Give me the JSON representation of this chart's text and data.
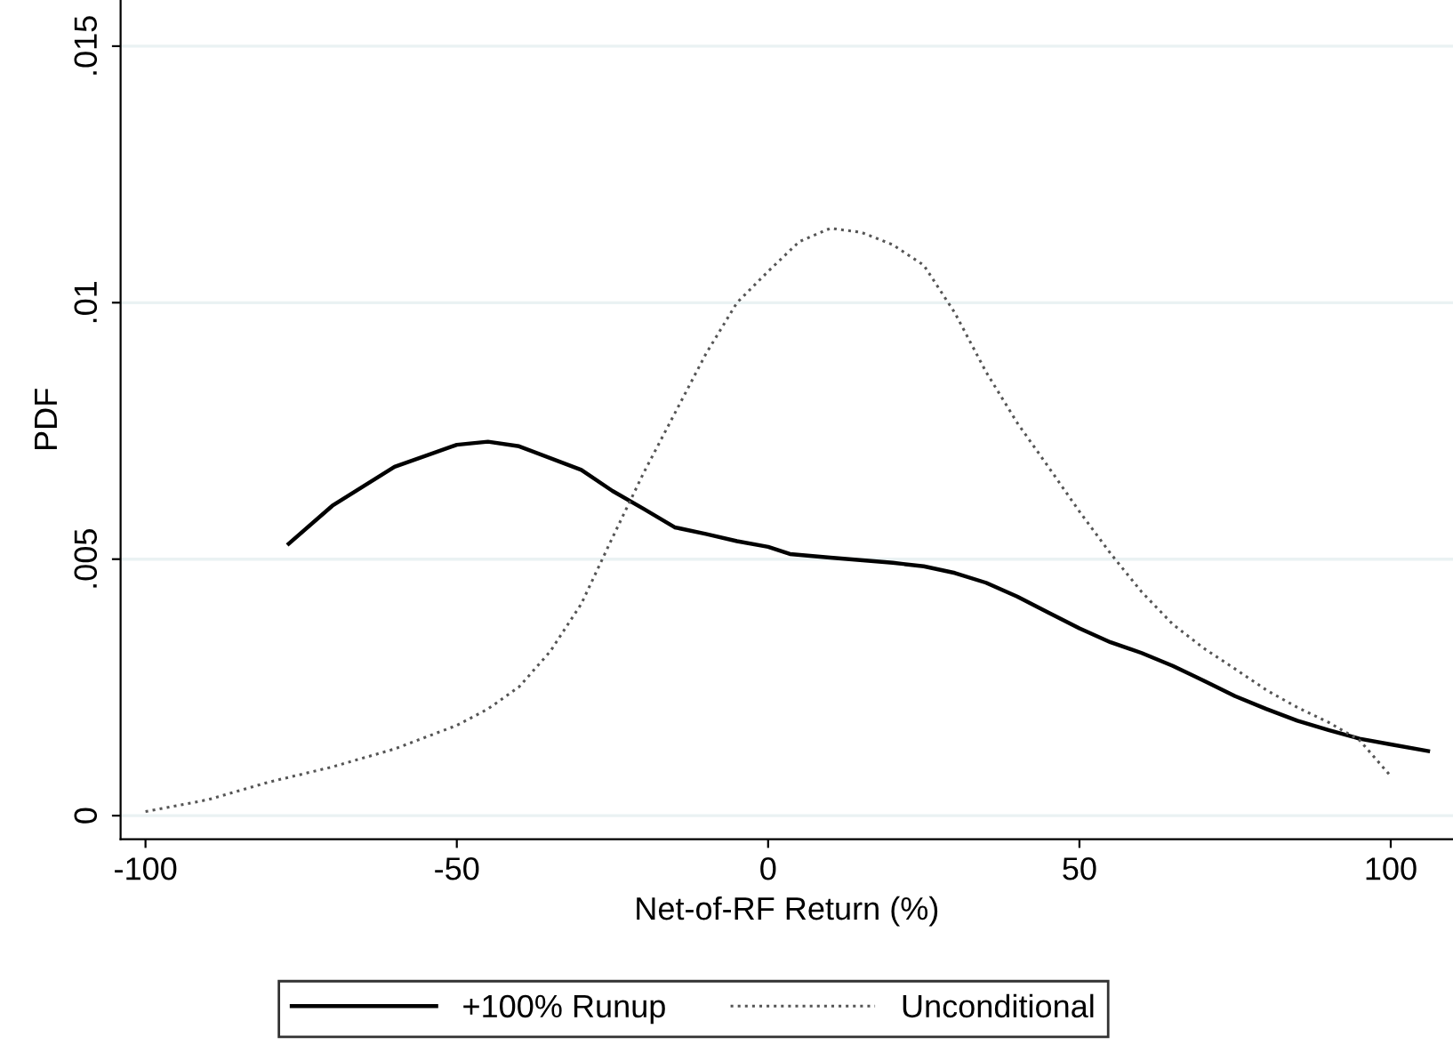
{
  "chart_data": {
    "type": "line",
    "xlabel": "Net-of-RF Return (%)",
    "ylabel": "PDF",
    "xlim": [
      -104,
      110
    ],
    "ylim": [
      -0.00046,
      0.0159
    ],
    "xticks": [
      -100,
      -50,
      0,
      50,
      100
    ],
    "yticks": [
      0,
      {
        "value": 0.005,
        "label": ".005"
      },
      {
        "value": 0.01,
        "label": ".01"
      },
      {
        "value": 0.015,
        "label": ".015"
      }
    ],
    "grid": "y",
    "legend": "bottom",
    "marker": "none",
    "series": [
      {
        "name": "+100% Runup",
        "color": "#000000",
        "line_style": "solid",
        "x": [
          -77,
          -70,
          -60,
          -50,
          -45,
          -40,
          -30,
          -25,
          -20,
          -15,
          -10,
          -5,
          0,
          3.5,
          10,
          20,
          25,
          30,
          35,
          40,
          45,
          50,
          55,
          60,
          65,
          70,
          75,
          80,
          85,
          90,
          95,
          100,
          106
        ],
        "values": [
          0.0053,
          0.00604,
          0.0068,
          0.00723,
          0.00729,
          0.0072,
          0.00674,
          0.00633,
          0.00598,
          0.00562,
          0.00549,
          0.00535,
          0.00524,
          0.0051,
          0.00503,
          0.00493,
          0.00486,
          0.00473,
          0.00454,
          0.00427,
          0.00396,
          0.00365,
          0.00338,
          0.00317,
          0.00292,
          0.00263,
          0.00233,
          0.00208,
          0.00185,
          0.00167,
          0.0015,
          0.00139,
          0.00126
        ]
      },
      {
        "name": "Unconditional",
        "color": "#555555",
        "line_style": "dotted",
        "x": [
          -100,
          -90,
          -80,
          -70,
          -60,
          -50,
          -45,
          -40,
          -35,
          -30,
          -25,
          -20,
          -15,
          -10,
          -5,
          0,
          5,
          10,
          15,
          20,
          25,
          30,
          35,
          40,
          45,
          50,
          55,
          60,
          65,
          70,
          75,
          80,
          85,
          90,
          95,
          100
        ],
        "values": [
          8e-05,
          0.00031,
          0.00066,
          0.00095,
          0.0013,
          0.00176,
          0.00208,
          0.00251,
          0.0032,
          0.00413,
          0.00542,
          0.00668,
          0.00784,
          0.009,
          0.01,
          0.01061,
          0.01119,
          0.01145,
          0.01137,
          0.01113,
          0.01073,
          0.0098,
          0.00865,
          0.00766,
          0.0068,
          0.00593,
          0.00511,
          0.00436,
          0.00373,
          0.00326,
          0.00286,
          0.00245,
          0.00211,
          0.00182,
          0.00147,
          0.00077
        ]
      }
    ]
  }
}
